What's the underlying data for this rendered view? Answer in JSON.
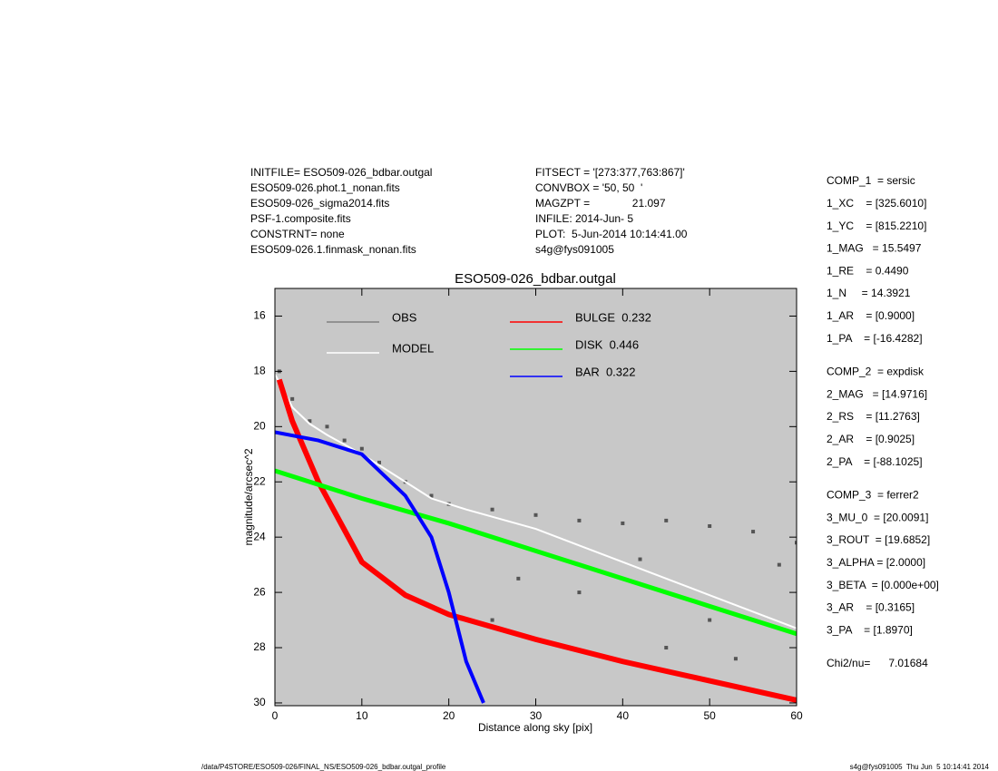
{
  "header": {
    "left": [
      "INITFILE= ESO509-026_bdbar.outgal",
      "ESO509-026.phot.1_nonan.fits",
      "ESO509-026_sigma2014.fits",
      "PSF-1.composite.fits",
      "CONSTRNT= none",
      "ESO509-026.1.finmask_nonan.fits"
    ],
    "middle": [
      "FITSECT = '[273:377,763:867]'",
      "CONVBOX = '50, 50  '",
      "MAGZPT =              21.097",
      "INFILE: 2014-Jun- 5",
      "PLOT:  5-Jun-2014 10:14:41.00",
      "s4g@fys091005"
    ]
  },
  "parameters": [
    [
      "COMP_1  = sersic",
      "1_XC    = [325.6010]",
      "1_YC    = [815.2210]",
      "1_MAG   = 15.5497",
      "1_RE    = 0.4490",
      "1_N     = 14.3921",
      "1_AR    = [0.9000]",
      "1_PA    = [-16.4282]"
    ],
    [
      "COMP_2  = expdisk",
      "2_MAG   = [14.9716]",
      "2_RS    = [11.2763]",
      "2_AR    = [0.9025]",
      "2_PA    = [-88.1025]"
    ],
    [
      "COMP_3  = ferrer2",
      "3_MU_0  = [20.0091]",
      "3_ROUT  = [19.6852]",
      "3_ALPHA = [2.0000]",
      "3_BETA  = [0.000e+00]",
      "3_AR    = [0.3165]",
      "3_PA    = [1.8970]"
    ],
    [
      "Chi2/nu=      7.01684"
    ]
  ],
  "footer": {
    "left": "/data/P4STORE/ESO509-026/FINAL_NS/ESO509-026_bdbar.outgal_profile",
    "right": "s4g@fys091005  Thu Jun  5 10:14:41 2014"
  },
  "chart_data": {
    "type": "line",
    "title": "ESO509-026_bdbar.outgal",
    "x_label": "Distance along sky [pix]",
    "y_label": "magnitude/arcsec^2",
    "xlim": [
      0,
      60
    ],
    "xticks": [
      0,
      10,
      20,
      30,
      40,
      50,
      60
    ],
    "ylim": [
      30.1,
      15
    ],
    "yticks": [
      16,
      18,
      20,
      22,
      24,
      26,
      28,
      30
    ],
    "background": "#c8c8c8",
    "series": [
      {
        "name": "OBS",
        "color": "#808080",
        "marker": "square",
        "point_color": "#555555",
        "x": [
          0.5,
          2,
          4,
          6,
          8,
          10,
          12,
          15,
          18,
          20,
          25,
          30,
          35,
          40,
          45,
          50,
          55,
          60,
          25,
          35,
          45,
          50,
          58,
          28,
          42,
          53
        ],
        "values": [
          18,
          19,
          19.8,
          20,
          20.5,
          20.8,
          21.3,
          22,
          22.5,
          22.8,
          23,
          23.2,
          23.4,
          23.5,
          23.4,
          23.6,
          23.8,
          24.2,
          27,
          26,
          28,
          27,
          25,
          25.5,
          24.8,
          28.4
        ]
      },
      {
        "name": "MODEL",
        "color": "#ffffff",
        "width": 2,
        "x": [
          0,
          2,
          4,
          6,
          10,
          14,
          18,
          22,
          30,
          40,
          50,
          60
        ],
        "values": [
          18.1,
          19.3,
          19.9,
          20.3,
          21,
          21.8,
          22.6,
          23,
          23.7,
          24.9,
          26.1,
          27.3
        ]
      },
      {
        "name": "BULGE  0.232",
        "color": "#ff0000",
        "width": 6,
        "x": [
          0.5,
          2,
          5,
          10,
          15,
          20,
          30,
          40,
          50,
          60
        ],
        "values": [
          18.3,
          19.8,
          22,
          24.9,
          26.1,
          26.8,
          27.7,
          28.5,
          29.2,
          29.9
        ]
      },
      {
        "name": "DISK  0.446",
        "color": "#00ff00",
        "width": 5,
        "x": [
          0,
          10,
          20,
          30,
          40,
          50,
          60
        ],
        "values": [
          21.6,
          22.6,
          23.5,
          24.5,
          25.5,
          26.5,
          27.5
        ]
      },
      {
        "name": "BAR  0.322",
        "color": "#0000ff",
        "width": 4,
        "x": [
          0,
          5,
          10,
          15,
          18,
          20,
          22,
          24
        ],
        "values": [
          20.2,
          20.5,
          21,
          22.5,
          24,
          26,
          28.5,
          30
        ]
      }
    ]
  }
}
